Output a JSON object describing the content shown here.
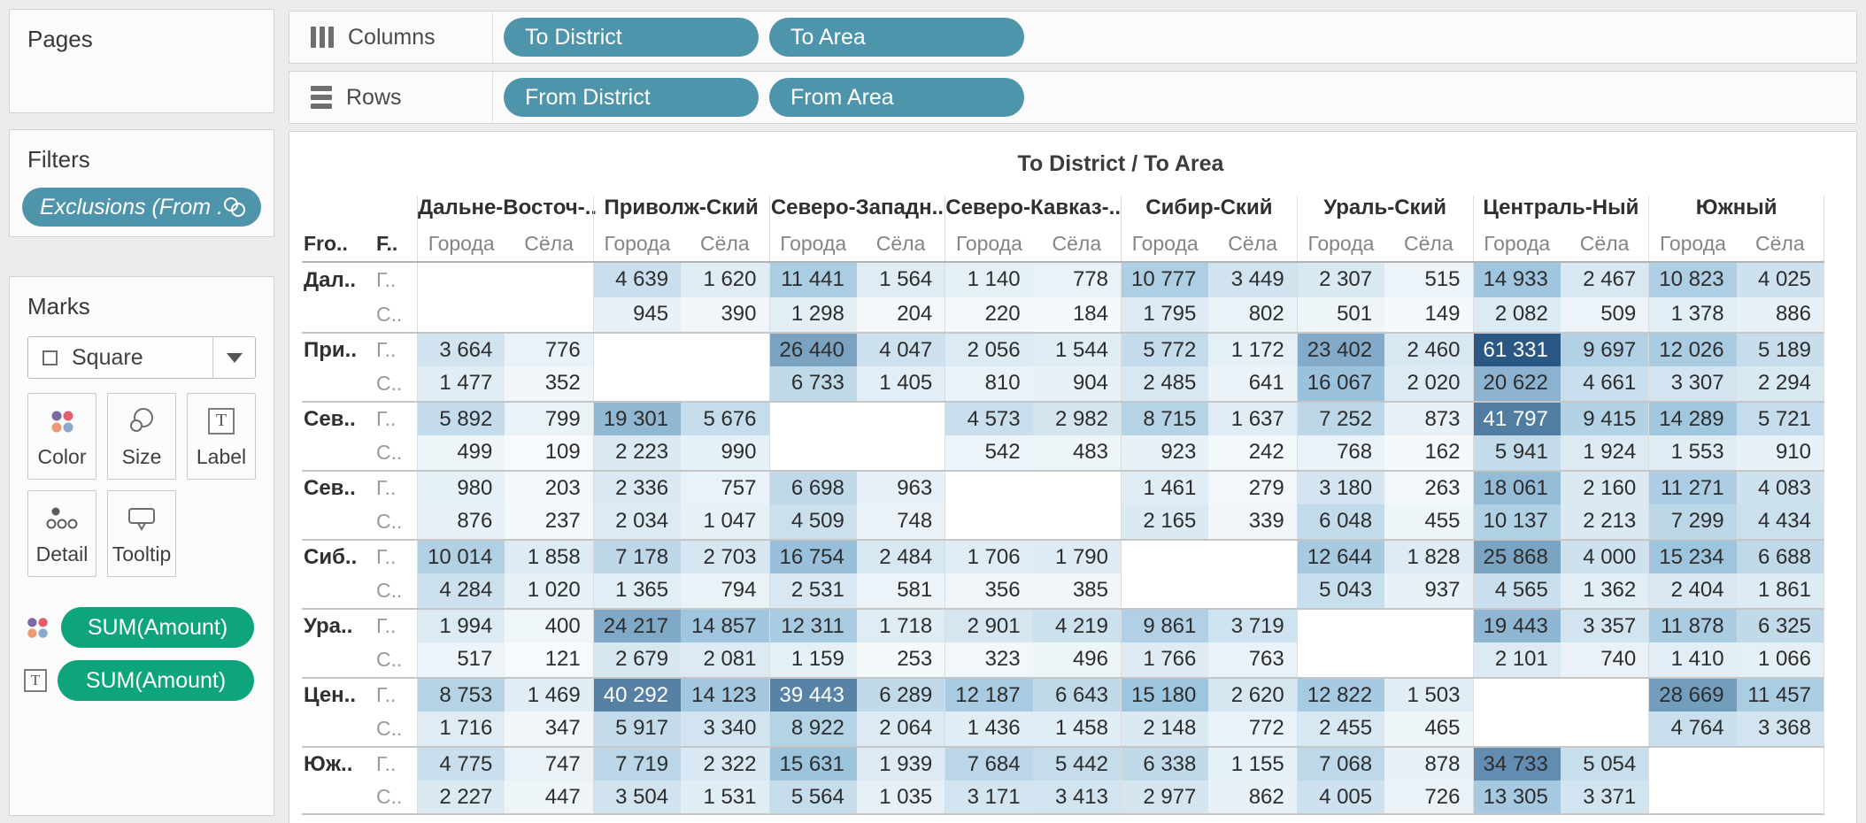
{
  "pages": {
    "title": "Pages"
  },
  "filters": {
    "title": "Filters",
    "pill_label": "Exclusions (From .."
  },
  "marks": {
    "title": "Marks",
    "mark_type": "Square",
    "buttons": [
      {
        "label": "Color"
      },
      {
        "label": "Size"
      },
      {
        "label": "Label"
      },
      {
        "label": "Detail"
      },
      {
        "label": "Tooltip"
      }
    ],
    "pills": [
      {
        "label": "SUM(Amount)",
        "icon": "color-dots-icon"
      },
      {
        "label": "SUM(Amount)",
        "icon": "text-icon"
      }
    ]
  },
  "shelves": {
    "columns": {
      "label": "Columns",
      "pills": [
        "To District",
        "To Area"
      ]
    },
    "rows": {
      "label": "Rows",
      "pills": [
        "From District",
        "From Area"
      ]
    }
  },
  "view": {
    "caption": "To District / To Area",
    "corner_headers": [
      "Fro..",
      "F.."
    ]
  },
  "colors": {
    "field_pill": "#4e95ab",
    "measure_pill": "#0fa57c",
    "heat_low": "#ffffff",
    "heat_mid": "#9ec5de",
    "heat_high": "#2a5783"
  },
  "chart_data": {
    "type": "heatmap",
    "title": "To District / To Area",
    "col_groups": [
      "Дальне-Восточ-..",
      "Приволж-Ский",
      "Северо-Западн..",
      "Северо-Кавказ-..",
      "Сибир-Ский",
      "Ураль-Ский",
      "Централь-Ный",
      "Южный"
    ],
    "sub_cols": [
      "Города",
      "Сёла"
    ],
    "row_groups": [
      "Дал..",
      "При..",
      "Сев..",
      "Сев..",
      "Сиб..",
      "Ура..",
      "Цен..",
      "Юж.."
    ],
    "sub_rows": [
      "Г..",
      "С.."
    ],
    "max_value": 61331,
    "rows": [
      [
        null,
        null,
        4639,
        1620,
        11441,
        1564,
        1140,
        778,
        10777,
        3449,
        2307,
        515,
        14933,
        2467,
        10823,
        4025
      ],
      [
        null,
        null,
        945,
        390,
        1298,
        204,
        220,
        184,
        1795,
        802,
        501,
        149,
        2082,
        509,
        1378,
        886
      ],
      [
        3664,
        776,
        null,
        null,
        26440,
        4047,
        2056,
        1544,
        5772,
        1172,
        23402,
        2460,
        61331,
        9697,
        12026,
        5189
      ],
      [
        1477,
        352,
        null,
        null,
        6733,
        1405,
        810,
        904,
        2485,
        641,
        16067,
        2020,
        20622,
        4661,
        3307,
        2294
      ],
      [
        5892,
        799,
        19301,
        5676,
        null,
        null,
        4573,
        2982,
        8715,
        1637,
        7252,
        873,
        41797,
        9415,
        14289,
        5721
      ],
      [
        499,
        109,
        2223,
        990,
        null,
        null,
        542,
        483,
        923,
        242,
        768,
        162,
        5941,
        1924,
        1553,
        910
      ],
      [
        980,
        203,
        2336,
        757,
        6698,
        963,
        null,
        null,
        1461,
        279,
        3180,
        263,
        18061,
        2160,
        11271,
        4083
      ],
      [
        876,
        237,
        2034,
        1047,
        4509,
        748,
        null,
        null,
        2165,
        339,
        6048,
        455,
        10137,
        2213,
        7299,
        4434
      ],
      [
        10014,
        1858,
        7178,
        2703,
        16754,
        2484,
        1706,
        1790,
        null,
        null,
        12644,
        1828,
        25868,
        4000,
        15234,
        6688
      ],
      [
        4284,
        1020,
        1365,
        794,
        2531,
        581,
        356,
        385,
        null,
        null,
        5043,
        937,
        4565,
        1362,
        2404,
        1861
      ],
      [
        1994,
        400,
        24217,
        14857,
        12311,
        1718,
        2901,
        4219,
        9861,
        3719,
        null,
        null,
        19443,
        3357,
        11878,
        6325
      ],
      [
        517,
        121,
        2679,
        2081,
        1159,
        253,
        323,
        496,
        1766,
        763,
        null,
        null,
        2101,
        740,
        1410,
        1066
      ],
      [
        8753,
        1469,
        40292,
        14123,
        39443,
        6289,
        12187,
        6643,
        15180,
        2620,
        12822,
        1503,
        null,
        null,
        28669,
        11457
      ],
      [
        1716,
        347,
        5917,
        3340,
        8922,
        2064,
        1436,
        1458,
        2148,
        772,
        2455,
        465,
        null,
        null,
        4764,
        3368
      ],
      [
        4775,
        747,
        7719,
        2322,
        15631,
        1939,
        7684,
        5442,
        6338,
        1155,
        7068,
        878,
        34733,
        5054,
        null,
        null
      ],
      [
        2227,
        447,
        3504,
        1531,
        5564,
        1035,
        3171,
        3413,
        2977,
        862,
        4005,
        726,
        13305,
        3371,
        null,
        null
      ]
    ]
  }
}
